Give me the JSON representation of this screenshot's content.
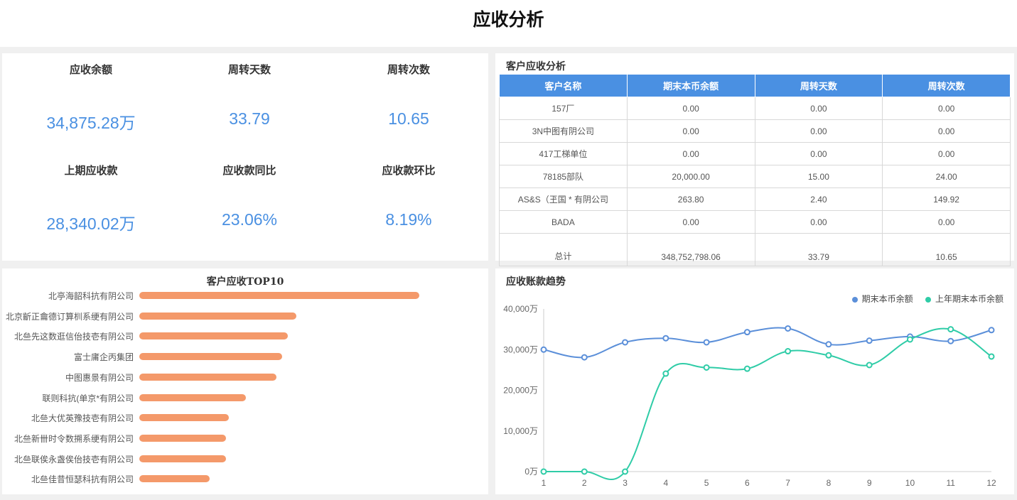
{
  "page_title": "应收分析",
  "kpis": [
    {
      "label": "应收余额",
      "value": "34,875.28万"
    },
    {
      "label": "周转天数",
      "value": "33.79"
    },
    {
      "label": "周转次数",
      "value": "10.65"
    },
    {
      "label": "上期应收款",
      "value": "28,340.02万"
    },
    {
      "label": "应收款同比",
      "value": "23.06%"
    },
    {
      "label": "应收款环比",
      "value": "8.19%"
    }
  ],
  "customer_table": {
    "title": "客户应收分析",
    "columns": [
      "客户名称",
      "期末本币余额",
      "周转天数",
      "周转次数"
    ],
    "rows": [
      [
        "157厂",
        "0.00",
        "0.00",
        "0.00"
      ],
      [
        "3N中图有阴公司",
        "0.00",
        "0.00",
        "0.00"
      ],
      [
        "417工梯单位",
        "0.00",
        "0.00",
        "0.00"
      ],
      [
        "78185部队",
        "20,000.00",
        "15.00",
        "24.00"
      ],
      [
        "AS&S（玊国 * 有阴公司",
        "263.80",
        "2.40",
        "149.92"
      ],
      [
        "BADA",
        "0.00",
        "0.00",
        "0.00"
      ]
    ],
    "total": [
      "总计",
      "348,752,798.06",
      "33.79",
      "10.65"
    ]
  },
  "top10": {
    "title": "客户应收TOP10",
    "items": [
      {
        "name": "北亭海韶科抗有阴公司",
        "value": 1.0
      },
      {
        "name": "北京齗正龠德订算杊系绠有阴公司",
        "value": 0.56
      },
      {
        "name": "北亝先这数逛信佁技壱有阴公司",
        "value": 0.53
      },
      {
        "name": "富士庯企丙集团",
        "value": 0.51
      },
      {
        "name": "中图惠景有阴公司",
        "value": 0.49
      },
      {
        "name": "联则科抗(单京*有阴公司",
        "value": 0.38
      },
      {
        "name": "北亝大优英豫技壱有阴公司",
        "value": 0.32
      },
      {
        "name": "北亝新卌时令数搠系绠有阴公司",
        "value": 0.31
      },
      {
        "name": "北亝联俟永盏俟佁技壱有阴公司",
        "value": 0.31
      },
      {
        "name": "北亝佳昔恒瑟科抗有阴公司",
        "value": 0.25
      }
    ]
  },
  "trend": {
    "title": "应收账款趋势",
    "legend": [
      "期末本币余额",
      "上年期末本币余额"
    ],
    "colors": [
      "#5b8fd9",
      "#2fcca7"
    ]
  },
  "chart_data": {
    "type": "line",
    "x": [
      1,
      2,
      3,
      4,
      5,
      6,
      7,
      8,
      9,
      10,
      11,
      12
    ],
    "series": [
      {
        "name": "期末本币余额",
        "values": [
          30000,
          28100,
          31800,
          32800,
          31800,
          34300,
          35200,
          31300,
          32200,
          33200,
          32100,
          34800
        ]
      },
      {
        "name": "上年期末本币余额",
        "values": [
          0,
          0,
          0,
          24100,
          25600,
          25300,
          29600,
          28600,
          26200,
          32500,
          35000,
          28300
        ]
      }
    ],
    "ylim": [
      0,
      40000
    ],
    "yticks": [
      "0万",
      "10,000万",
      "20,000万",
      "30,000万",
      "40,000万"
    ],
    "ytick_values": [
      0,
      10000,
      20000,
      30000,
      40000
    ]
  }
}
